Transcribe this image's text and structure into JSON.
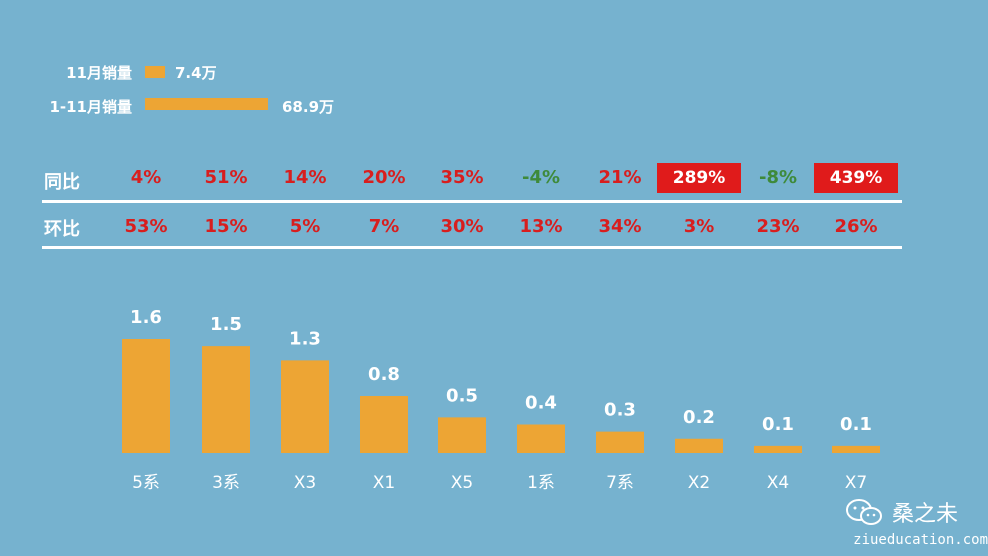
{
  "legend": {
    "monthly_label": "11月销量",
    "monthly_value": "7.4万",
    "monthly_amount": 7.4,
    "ytd_label": "1-11月销量",
    "ytd_value": "68.9万",
    "ytd_amount": 68.9,
    "color": "#EDA534"
  },
  "rows": {
    "yoy_label": "同比",
    "mom_label": "环比"
  },
  "colors": {
    "red": "#D81E1E",
    "green": "#3E8A3A",
    "highlight_bg": "#E01B1B",
    "bar": "#EDA534",
    "background": "#76B2CF"
  },
  "chart_data": {
    "type": "bar",
    "categories": [
      "5系",
      "3系",
      "X3",
      "X1",
      "X5",
      "1系",
      "7系",
      "X2",
      "X4",
      "X7"
    ],
    "values": [
      1.6,
      1.5,
      1.3,
      0.8,
      0.5,
      0.4,
      0.3,
      0.2,
      0.1,
      0.1
    ],
    "value_labels": [
      "1.6",
      "1.5",
      "1.3",
      "0.8",
      "0.5",
      "0.4",
      "0.3",
      "0.2",
      "0.1",
      "0.1"
    ],
    "ylim": [
      0,
      1.6
    ],
    "grid": false,
    "legend": "none"
  },
  "yoy": [
    {
      "text": "4%",
      "tone": "red"
    },
    {
      "text": "51%",
      "tone": "red"
    },
    {
      "text": "14%",
      "tone": "red"
    },
    {
      "text": "20%",
      "tone": "red"
    },
    {
      "text": "35%",
      "tone": "red"
    },
    {
      "text": "-4%",
      "tone": "green"
    },
    {
      "text": "21%",
      "tone": "red"
    },
    {
      "text": "289%",
      "tone": "highlight"
    },
    {
      "text": "-8%",
      "tone": "green"
    },
    {
      "text": "439%",
      "tone": "highlight"
    }
  ],
  "mom": [
    {
      "text": "53%",
      "tone": "red"
    },
    {
      "text": "15%",
      "tone": "red"
    },
    {
      "text": "5%",
      "tone": "red"
    },
    {
      "text": "7%",
      "tone": "red"
    },
    {
      "text": "30%",
      "tone": "red"
    },
    {
      "text": "13%",
      "tone": "red"
    },
    {
      "text": "34%",
      "tone": "red"
    },
    {
      "text": "3%",
      "tone": "red"
    },
    {
      "text": "23%",
      "tone": "red"
    },
    {
      "text": "26%",
      "tone": "red"
    }
  ],
  "watermark": {
    "brand": "桑之未",
    "site": "ziueducation.com",
    "icon": "wechat-icon"
  }
}
